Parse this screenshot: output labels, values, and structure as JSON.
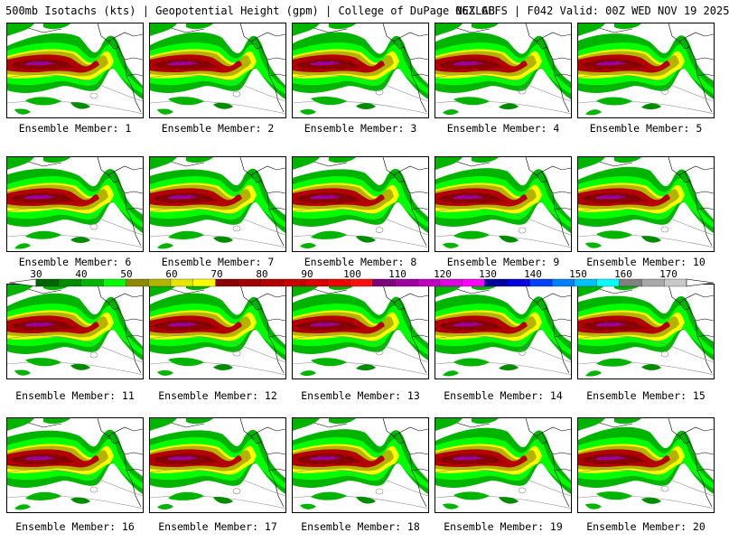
{
  "header": {
    "left": "500mb Isotachs (kts) | Geopotential Height (gpm) | College of DuPage NEXLAB",
    "right": "06Z GEFS | F042 Valid: 00Z WED NOV 19 2025"
  },
  "member_prefix": "Ensemble Member:",
  "members": [
    {
      "label": "Ensemble Member: 1"
    },
    {
      "label": "Ensemble Member: 2"
    },
    {
      "label": "Ensemble Member: 3"
    },
    {
      "label": "Ensemble Member: 4"
    },
    {
      "label": "Ensemble Member: 5"
    },
    {
      "label": "Ensemble Member: 6"
    },
    {
      "label": "Ensemble Member: 7"
    },
    {
      "label": "Ensemble Member: 8"
    },
    {
      "label": "Ensemble Member: 9"
    },
    {
      "label": "Ensemble Member: 10"
    },
    {
      "label": "Ensemble Member: 11"
    },
    {
      "label": "Ensemble Member: 12"
    },
    {
      "label": "Ensemble Member: 13"
    },
    {
      "label": "Ensemble Member: 14"
    },
    {
      "label": "Ensemble Member: 15"
    },
    {
      "label": "Ensemble Member: 16"
    },
    {
      "label": "Ensemble Member: 17"
    },
    {
      "label": "Ensemble Member: 18"
    },
    {
      "label": "Ensemble Member: 19"
    },
    {
      "label": "Ensemble Member: 20"
    }
  ],
  "colorbar": {
    "labels": [
      "30",
      "40",
      "50",
      "60",
      "70",
      "80",
      "90",
      "100",
      "110",
      "120",
      "130",
      "140",
      "150",
      "160",
      "170"
    ],
    "colors": [
      "#006400",
      "#008c00",
      "#00b400",
      "#00ff00",
      "#8b8b00",
      "#b4b400",
      "#e6e600",
      "#ffff00",
      "#8b0000",
      "#a00000",
      "#b40000",
      "#c80000",
      "#dc0000",
      "#f00000",
      "#ff1010",
      "#7d007d",
      "#a000a0",
      "#c000c0",
      "#e000e0",
      "#ff00ff",
      "#0000a0",
      "#0000e0",
      "#0040ff",
      "#0080ff",
      "#00c0ff",
      "#00ffff",
      "#808080",
      "#a9a9a9",
      "#c8c8c8"
    ]
  }
}
